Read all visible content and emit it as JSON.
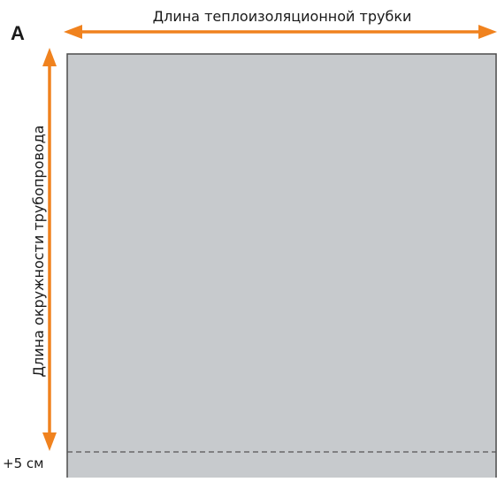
{
  "panel_letter": "A",
  "labels": {
    "top": "Длина теплоизоляционной трубки",
    "side": "Длина окружности трубопровода",
    "margin": "+5 см"
  },
  "colors": {
    "arrow": "#f0821e",
    "sheet_fill": "#c7cacd",
    "sheet_border": "#4d4d4d",
    "dashed_line": "#555555",
    "text": "#1a1a1a"
  }
}
